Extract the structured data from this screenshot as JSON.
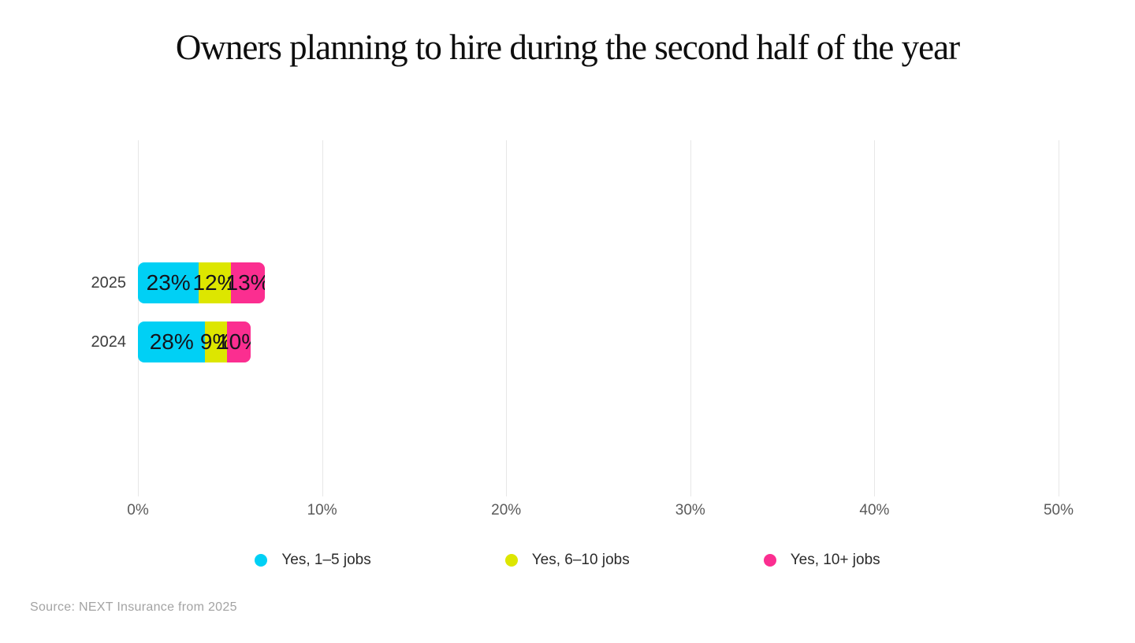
{
  "title": "Owners planning to hire during the second half of the year",
  "source": "Source: NEXT Insurance from 2025",
  "colors": {
    "cyan": "#00d0f5",
    "yellow": "#dde600",
    "pink": "#fb2e90",
    "gridline": "#e7e7e7",
    "title_text": "#0e0e0e",
    "bar_value_text": "#14141c",
    "year_label_text": "#3c3c3c",
    "tick_text": "#5a5a5a",
    "legend_text": "#2b2b2b",
    "source_text": "#a3a3a3"
  },
  "chart_data": {
    "type": "bar",
    "orientation": "horizontal",
    "stacked": true,
    "title": "Owners planning to hire during the second half of the year",
    "categories": [
      "2025",
      "2024"
    ],
    "series": [
      {
        "name": "Yes, 1–5 jobs",
        "color_key": "cyan",
        "values": [
          23,
          28
        ]
      },
      {
        "name": "Yes, 6–10 jobs",
        "color_key": "yellow",
        "values": [
          12,
          9
        ]
      },
      {
        "name": "Yes, 10+ jobs",
        "color_key": "pink",
        "values": [
          13,
          10
        ]
      }
    ],
    "value_label_suffix": "%",
    "x_ticks": [
      "0%",
      "10%",
      "20%",
      "30%",
      "40%",
      "50%"
    ],
    "x_tick_values": [
      0,
      10,
      20,
      30,
      40,
      50
    ],
    "xlim": [
      0,
      50
    ],
    "grid": true,
    "legend_position": "bottom"
  }
}
